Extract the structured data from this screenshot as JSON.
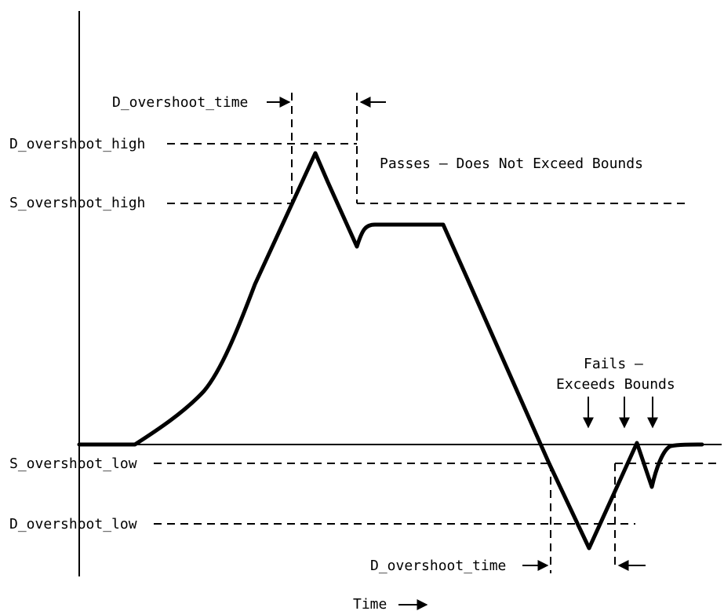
{
  "labels": {
    "d_overshoot_time_top": "D_overshoot_time",
    "d_overshoot_high": "D_overshoot_high",
    "s_overshoot_high": "S_overshoot_high",
    "passes": "Passes – Does Not Exceed Bounds",
    "fails_line1": "Fails –",
    "fails_line2": "Exceeds Bounds",
    "s_overshoot_low": "S_overshoot_low",
    "d_overshoot_low": "D_overshoot_low",
    "d_overshoot_time_bottom": "D_overshoot_time",
    "time_axis": "Time"
  }
}
